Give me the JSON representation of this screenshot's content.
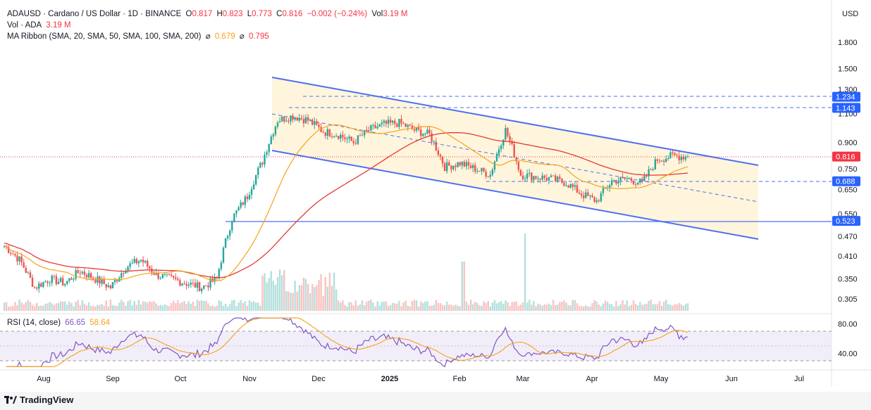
{
  "header": {
    "symbol_line": "ADAUSD · Cardano / US Dollar · 1D · BINANCE",
    "o_label": "O",
    "o_value": "0.817",
    "h_label": "H",
    "h_value": "0.823",
    "l_label": "L",
    "l_value": "0.773",
    "c_label": "C",
    "c_value": "0.816",
    "change": "−0.002 (−0.24%)",
    "vol_label": "Vol",
    "vol_value": "3.19 M",
    "vol_line_label": "Vol · ADA",
    "vol_line_value": "3.19 M",
    "ma_label": "MA Ribbon (SMA, 20, SMA, 50, SMA, 100, SMA, 200)",
    "ma_glyph": "⌀",
    "ma_value_1": "0.679",
    "ma_value_2": "0.795"
  },
  "rsi": {
    "label": "RSI (14, close)",
    "value": "66.65",
    "ma_value": "58.64"
  },
  "currency": "USD",
  "footer": {
    "brand": "TradingView"
  },
  "colors": {
    "up": "#26a69a",
    "down": "#ef5350",
    "sma_long": "#e53935",
    "sma_short": "#f7a21b",
    "channel": "#4d6ff0",
    "rsi_line": "#7e57c2",
    "rsi_band": "#ede7f6"
  },
  "chart_data": {
    "type": "candlestick",
    "x_labels": [
      "Aug",
      "Sep",
      "Oct",
      "Nov",
      "Dec",
      "2025",
      "Feb",
      "Mar",
      "Apr",
      "May",
      "Jun",
      "Jul"
    ],
    "y_ticks": [
      "1.800",
      "1.500",
      "1.300",
      "1.100",
      "0.900",
      "0.750",
      "0.650",
      "0.550",
      "0.470",
      "0.410",
      "0.350",
      "0.305"
    ],
    "y_tick_values": [
      1.8,
      1.5,
      1.3,
      1.1,
      0.9,
      0.75,
      0.65,
      0.55,
      0.47,
      0.41,
      0.35,
      0.305
    ],
    "price_tags": [
      {
        "label": "1.234",
        "value": 1.234
      },
      {
        "label": "1.143",
        "value": 1.143
      },
      {
        "label": "0.816",
        "value": 0.816
      },
      {
        "label": "0.688",
        "value": 0.688
      },
      {
        "label": "0.523",
        "value": 0.523
      }
    ],
    "current_price": 0.816,
    "rsi_ticks": [
      "80.00",
      "40.00"
    ],
    "rsi_tick_values": [
      80,
      40
    ],
    "rsi_band": [
      30,
      70
    ],
    "candles_weekly_close": [
      0.44,
      0.4,
      0.33,
      0.35,
      0.34,
      0.37,
      0.35,
      0.33,
      0.38,
      0.4,
      0.36,
      0.35,
      0.34,
      0.33,
      0.35,
      0.53,
      0.62,
      0.79,
      1.05,
      1.08,
      1.05,
      0.97,
      0.95,
      0.9,
      0.98,
      1.02,
      1.03,
      0.98,
      0.95,
      0.76,
      0.78,
      0.75,
      0.72,
      0.98,
      0.72,
      0.71,
      0.7,
      0.68,
      0.63,
      0.6,
      0.69,
      0.7,
      0.68,
      0.8,
      0.82,
      0.816
    ],
    "channel": {
      "upper_start": 1.42,
      "upper_end": 0.76,
      "lower_start": 0.85,
      "lower_end": 0.46
    }
  }
}
